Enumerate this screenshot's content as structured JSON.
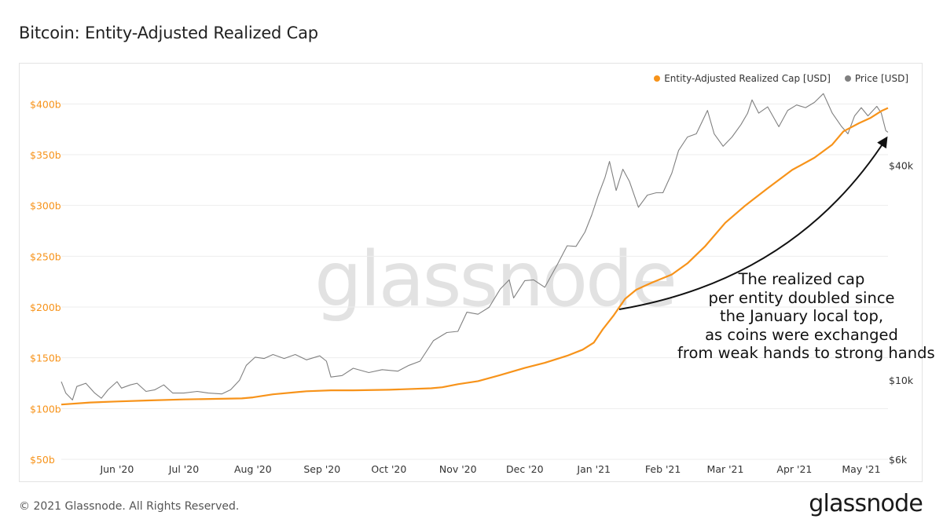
{
  "title": "Bitcoin: Entity-Adjusted Realized Cap",
  "legend": [
    {
      "label": "Entity-Adjusted Realized Cap [USD]",
      "color": "#f7931a"
    },
    {
      "label": "Price [USD]",
      "color": "#808080"
    }
  ],
  "watermark": "glassnode",
  "annotation": {
    "lines": [
      "The realized cap",
      "per entity doubled since",
      "the January local top,",
      "as coins were exchanged",
      "from weak hands to strong hands"
    ]
  },
  "footer": "© 2021 Glassnode. All Rights Reserved.",
  "brand": "glassnode",
  "chart_data": {
    "type": "line",
    "title": "Bitcoin: Entity-Adjusted Realized Cap",
    "x_range": [
      "2020-05-07",
      "2021-05-13"
    ],
    "x_ticks": [
      {
        "label": "Jun '20",
        "date": "2020-06-01"
      },
      {
        "label": "Jul '20",
        "date": "2020-07-01"
      },
      {
        "label": "Aug '20",
        "date": "2020-08-01"
      },
      {
        "label": "Sep '20",
        "date": "2020-09-01"
      },
      {
        "label": "Oct '20",
        "date": "2020-10-01"
      },
      {
        "label": "Nov '20",
        "date": "2020-11-01"
      },
      {
        "label": "Dec '20",
        "date": "2020-12-01"
      },
      {
        "label": "Jan '21",
        "date": "2021-01-01"
      },
      {
        "label": "Feb '21",
        "date": "2021-02-01"
      },
      {
        "label": "Mar '21",
        "date": "2021-03-01"
      },
      {
        "label": "Apr '21",
        "date": "2021-04-01"
      },
      {
        "label": "May '21",
        "date": "2021-05-01"
      }
    ],
    "y_left": {
      "scale": "linear",
      "min": 50,
      "max": 425,
      "unit": "billion USD",
      "color": "#f7931a",
      "ticks": [
        {
          "value": 50,
          "label": "$50b"
        },
        {
          "value": 100,
          "label": "$100b"
        },
        {
          "value": 150,
          "label": "$150b"
        },
        {
          "value": 200,
          "label": "$200b"
        },
        {
          "value": 250,
          "label": "$250b"
        },
        {
          "value": 300,
          "label": "$300b"
        },
        {
          "value": 350,
          "label": "$350b"
        },
        {
          "value": 400,
          "label": "$400b"
        }
      ]
    },
    "y_right": {
      "scale": "log",
      "min": 6000,
      "max": 70000,
      "unit": "USD",
      "color": "#333333",
      "ticks": [
        {
          "value": 6000,
          "label": "$6k"
        },
        {
          "value": 10000,
          "label": "$10k"
        },
        {
          "value": 40000,
          "label": "$40k"
        }
      ]
    },
    "grid": "horizontal",
    "legend_position": "top-right",
    "series": [
      {
        "name": "Entity-Adjusted Realized Cap [USD]",
        "axis": "left",
        "color": "#f7931a",
        "points": [
          [
            "2020-05-07",
            104
          ],
          [
            "2020-05-20",
            106
          ],
          [
            "2020-06-01",
            107
          ],
          [
            "2020-06-15",
            108
          ],
          [
            "2020-07-01",
            109
          ],
          [
            "2020-07-15",
            109.5
          ],
          [
            "2020-07-27",
            110
          ],
          [
            "2020-08-01",
            111
          ],
          [
            "2020-08-10",
            114
          ],
          [
            "2020-08-25",
            117
          ],
          [
            "2020-09-05",
            118
          ],
          [
            "2020-09-15",
            118
          ],
          [
            "2020-10-01",
            118.5
          ],
          [
            "2020-10-20",
            120
          ],
          [
            "2020-10-25",
            121
          ],
          [
            "2020-11-01",
            124
          ],
          [
            "2020-11-10",
            127
          ],
          [
            "2020-11-20",
            133
          ],
          [
            "2020-12-01",
            140
          ],
          [
            "2020-12-10",
            145
          ],
          [
            "2020-12-20",
            152
          ],
          [
            "2020-12-27",
            158
          ],
          [
            "2021-01-01",
            165
          ],
          [
            "2021-01-05",
            178
          ],
          [
            "2021-01-10",
            192
          ],
          [
            "2021-01-15",
            208
          ],
          [
            "2021-01-20",
            217
          ],
          [
            "2021-01-27",
            224
          ],
          [
            "2021-02-05",
            232
          ],
          [
            "2021-02-12",
            243
          ],
          [
            "2021-02-20",
            260
          ],
          [
            "2021-03-01",
            283
          ],
          [
            "2021-03-10",
            300
          ],
          [
            "2021-03-20",
            317
          ],
          [
            "2021-03-31",
            335
          ],
          [
            "2021-04-10",
            347
          ],
          [
            "2021-04-18",
            360
          ],
          [
            "2021-04-23",
            373
          ],
          [
            "2021-04-30",
            381
          ],
          [
            "2021-05-05",
            386
          ],
          [
            "2021-05-10",
            393
          ],
          [
            "2021-05-13",
            396
          ]
        ]
      },
      {
        "name": "Price [USD]",
        "axis": "right",
        "color": "#808080",
        "points": [
          [
            "2020-05-07",
            9900
          ],
          [
            "2020-05-09",
            9200
          ],
          [
            "2020-05-12",
            8800
          ],
          [
            "2020-05-14",
            9600
          ],
          [
            "2020-05-18",
            9800
          ],
          [
            "2020-05-22",
            9200
          ],
          [
            "2020-05-25",
            8900
          ],
          [
            "2020-05-28",
            9400
          ],
          [
            "2020-06-01",
            9900
          ],
          [
            "2020-06-03",
            9500
          ],
          [
            "2020-06-07",
            9700
          ],
          [
            "2020-06-10",
            9800
          ],
          [
            "2020-06-14",
            9300
          ],
          [
            "2020-06-18",
            9400
          ],
          [
            "2020-06-22",
            9700
          ],
          [
            "2020-06-26",
            9200
          ],
          [
            "2020-07-01",
            9200
          ],
          [
            "2020-07-07",
            9300
          ],
          [
            "2020-07-12",
            9200
          ],
          [
            "2020-07-18",
            9150
          ],
          [
            "2020-07-22",
            9400
          ],
          [
            "2020-07-26",
            10000
          ],
          [
            "2020-07-29",
            11000
          ],
          [
            "2020-08-02",
            11600
          ],
          [
            "2020-08-06",
            11500
          ],
          [
            "2020-08-10",
            11800
          ],
          [
            "2020-08-15",
            11500
          ],
          [
            "2020-08-20",
            11800
          ],
          [
            "2020-08-25",
            11400
          ],
          [
            "2020-08-31",
            11700
          ],
          [
            "2020-09-03",
            11300
          ],
          [
            "2020-09-05",
            10200
          ],
          [
            "2020-09-10",
            10300
          ],
          [
            "2020-09-15",
            10800
          ],
          [
            "2020-09-22",
            10500
          ],
          [
            "2020-09-28",
            10700
          ],
          [
            "2020-10-05",
            10600
          ],
          [
            "2020-10-10",
            11000
          ],
          [
            "2020-10-15",
            11300
          ],
          [
            "2020-10-21",
            12900
          ],
          [
            "2020-10-27",
            13600
          ],
          [
            "2020-11-01",
            13700
          ],
          [
            "2020-11-05",
            15500
          ],
          [
            "2020-11-10",
            15300
          ],
          [
            "2020-11-15",
            16000
          ],
          [
            "2020-11-20",
            18000
          ],
          [
            "2020-11-24",
            19100
          ],
          [
            "2020-11-26",
            17000
          ],
          [
            "2020-12-01",
            19000
          ],
          [
            "2020-12-05",
            19100
          ],
          [
            "2020-12-10",
            18200
          ],
          [
            "2020-12-16",
            21300
          ],
          [
            "2020-12-20",
            23800
          ],
          [
            "2020-12-24",
            23700
          ],
          [
            "2020-12-28",
            26000
          ],
          [
            "2020-12-31",
            29000
          ],
          [
            "2021-01-03",
            33000
          ],
          [
            "2021-01-06",
            37000
          ],
          [
            "2021-01-08",
            41000
          ],
          [
            "2021-01-11",
            34000
          ],
          [
            "2021-01-14",
            39000
          ],
          [
            "2021-01-17",
            36000
          ],
          [
            "2021-01-21",
            30500
          ],
          [
            "2021-01-25",
            33000
          ],
          [
            "2021-01-29",
            33500
          ],
          [
            "2021-02-01",
            33500
          ],
          [
            "2021-02-05",
            38000
          ],
          [
            "2021-02-08",
            44000
          ],
          [
            "2021-02-12",
            48000
          ],
          [
            "2021-02-16",
            49000
          ],
          [
            "2021-02-21",
            57000
          ],
          [
            "2021-02-24",
            49000
          ],
          [
            "2021-02-28",
            45200
          ],
          [
            "2021-03-04",
            48000
          ],
          [
            "2021-03-08",
            52000
          ],
          [
            "2021-03-11",
            56000
          ],
          [
            "2021-03-13",
            61000
          ],
          [
            "2021-03-16",
            56000
          ],
          [
            "2021-03-20",
            58300
          ],
          [
            "2021-03-25",
            51300
          ],
          [
            "2021-03-29",
            57000
          ],
          [
            "2021-04-02",
            59000
          ],
          [
            "2021-04-06",
            58000
          ],
          [
            "2021-04-10",
            60000
          ],
          [
            "2021-04-14",
            63500
          ],
          [
            "2021-04-18",
            56000
          ],
          [
            "2021-04-22",
            51500
          ],
          [
            "2021-04-25",
            49000
          ],
          [
            "2021-04-28",
            55000
          ],
          [
            "2021-05-01",
            58000
          ],
          [
            "2021-05-04",
            55000
          ],
          [
            "2021-05-08",
            58500
          ],
          [
            "2021-05-10",
            56000
          ],
          [
            "2021-05-12",
            50000
          ],
          [
            "2021-05-13",
            49500
          ]
        ]
      }
    ]
  }
}
